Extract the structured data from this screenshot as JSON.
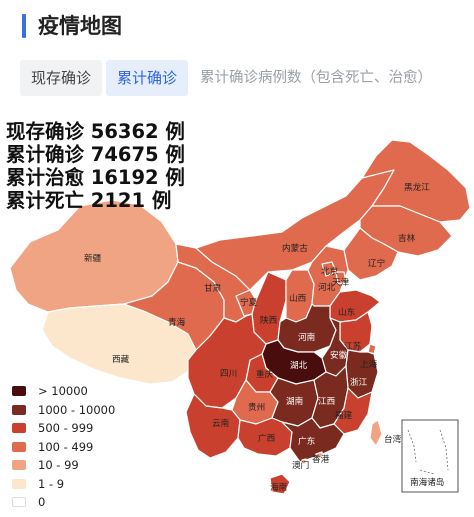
{
  "header": {
    "title": "疫情地图"
  },
  "tabs": [
    {
      "label": "现存确诊"
    },
    {
      "label": "累计确诊"
    },
    {
      "label": "累计确诊病例数（包含死亡、治愈）"
    }
  ],
  "stats": [
    {
      "text": "现存确诊 56362 例"
    },
    {
      "text": "累计确诊 74675 例"
    },
    {
      "text": "累计治愈 16192 例"
    },
    {
      "text": "累计死亡 2121 例"
    }
  ],
  "legend": [
    {
      "label": "> 10000",
      "color": "#4a0d0d"
    },
    {
      "label": "1000 - 10000",
      "color": "#7a2a1f"
    },
    {
      "label": "500 - 999",
      "color": "#c9412e"
    },
    {
      "label": "100 - 499",
      "color": "#e06a4e"
    },
    {
      "label": "10 - 99",
      "color": "#f0a483"
    },
    {
      "label": "1 - 9",
      "color": "#fce7cc"
    },
    {
      "label": "0",
      "color": "#ffffff"
    }
  ],
  "provinces": {
    "heilongjiang": "黑龙江",
    "jilin": "吉林",
    "liaoning": "辽宁",
    "neimenggu": "内蒙古",
    "xinjiang": "新疆",
    "xizang": "西藏",
    "qinghai": "青海",
    "gansu": "甘肃",
    "ningxia": "宁夏",
    "shaanxi": "陕西",
    "shanxi": "山西",
    "hebei": "河北",
    "beijing": "北京",
    "tianjin": "天津",
    "shandong": "山东",
    "henan": "河南",
    "jiangsu": "江苏",
    "anhui": "安徽",
    "shanghai": "上海",
    "hubei": "湖北",
    "sichuan": "四川",
    "chongqing": "重庆",
    "guizhou": "贵州",
    "yunnan": "云南",
    "hunan": "湖南",
    "jiangxi": "江西",
    "zhejiang": "浙江",
    "fujian": "福建",
    "guangxi": "广西",
    "guangdong": "广东",
    "taiwan": "台湾",
    "hongkong": "香港",
    "macau": "澳门",
    "hainan": "海南"
  },
  "inset": {
    "label": "南海诸岛"
  }
}
